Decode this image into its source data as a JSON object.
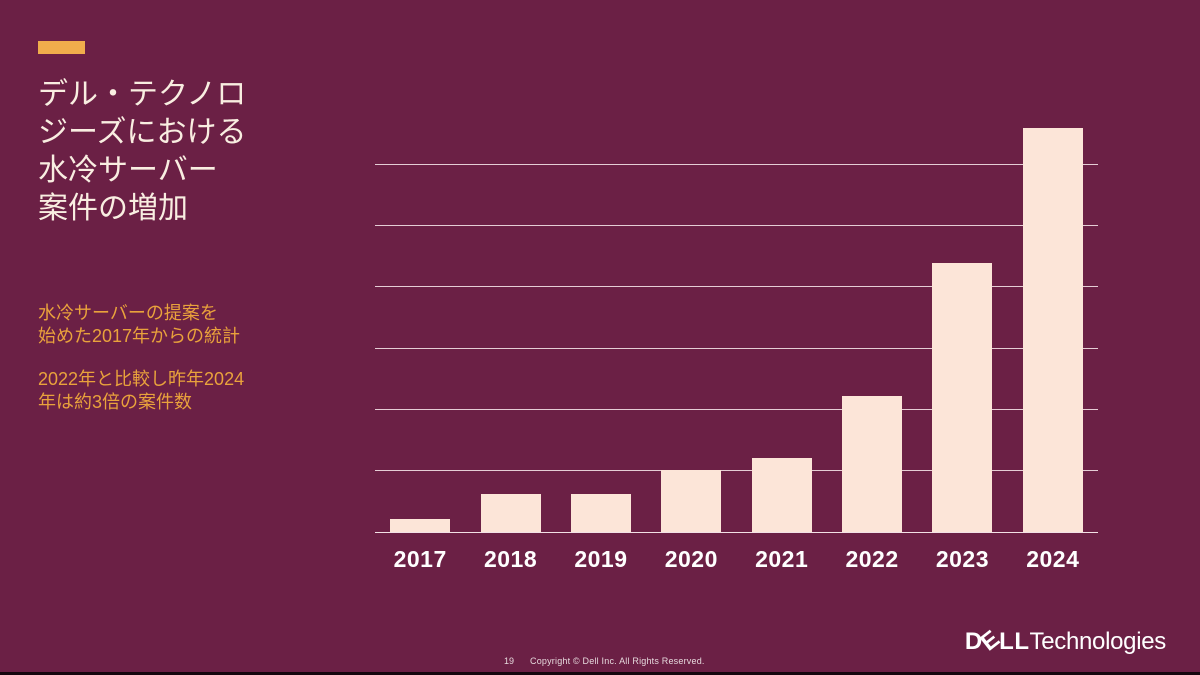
{
  "slide": {
    "title": "デル・テクノロ\nジーズにおける\n水冷サーバー\n案件の増加",
    "subtitle_block_1": "水冷サーバーの提案を\n始めた2017年からの統計",
    "subtitle_block_2": "2022年と比較し昨年2024\n年は約3倍の案件数",
    "colors": {
      "background": "#6B2045",
      "accent_bar": "#F0AD4C",
      "title_text": "#F9EEE1",
      "subtitle_text": "#E9A23C",
      "bar_fill": "#FCE5D8",
      "gridline": "#F0DCE2",
      "axis_labels": "#FFFFFF",
      "footer_text": "#E6D9DD",
      "bottom_strip": "#14070F"
    }
  },
  "chart_data": {
    "type": "bar",
    "categories": [
      "2017",
      "2018",
      "2019",
      "2020",
      "2021",
      "2022",
      "2023",
      "2024"
    ],
    "values": [
      0.21,
      0.62,
      0.62,
      1.01,
      1.21,
      2.22,
      4.4,
      6.61
    ],
    "title": "",
    "xlabel": "",
    "ylabel": "",
    "ylim": [
      0,
      7
    ],
    "gridline_step": 1,
    "grid": "7 horizontal gridlines above baseline, no y-axis tick labels",
    "legend": "none",
    "note": "values estimated in gridline units; 2024 is about 3x 2022 per slide text"
  },
  "footer": {
    "page_number": "19",
    "copyright": "Copyright © Dell Inc. All Rights Reserved."
  },
  "brand": {
    "dell_d": "D",
    "dell_e": "E",
    "dell_ll": "LL",
    "technologies": "Technologies"
  }
}
